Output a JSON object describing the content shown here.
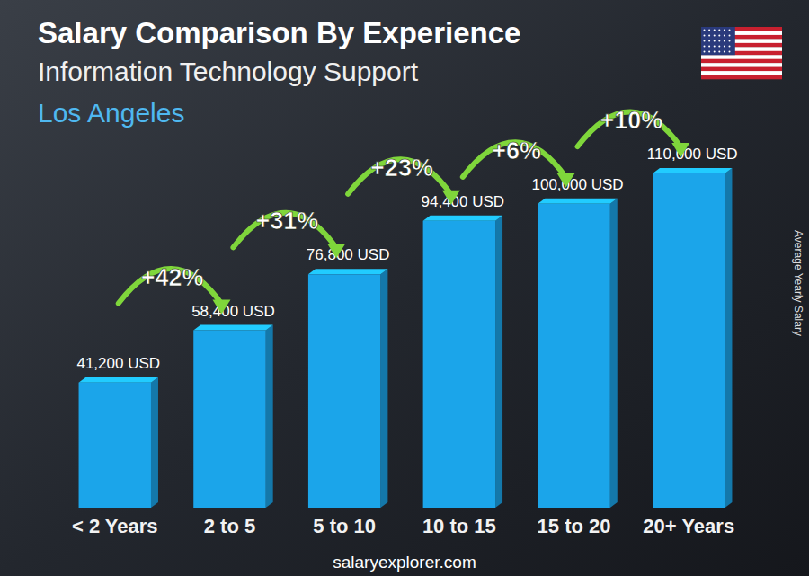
{
  "chart_data": {
    "type": "bar",
    "title": "Salary Comparison By Experience",
    "subtitle": "Information Technology Support",
    "location": "Los Angeles",
    "y_label": "Average Yearly Salary",
    "categories": [
      "< 2 Years",
      "2 to 5",
      "5 to 10",
      "10 to 15",
      "15 to 20",
      "20+ Years"
    ],
    "values": [
      41200,
      58400,
      76800,
      94400,
      100000,
      110000
    ],
    "value_labels": [
      "41,200 USD",
      "58,400 USD",
      "76,800 USD",
      "94,400 USD",
      "100,000 USD",
      "110,000 USD"
    ],
    "annotations": [
      "+42%",
      "+31%",
      "+23%",
      "+6%",
      "+10%"
    ],
    "color": "#1ba5ea",
    "data_labels": true,
    "tick_labels": "x",
    "source": "salaryexplorer.com"
  }
}
